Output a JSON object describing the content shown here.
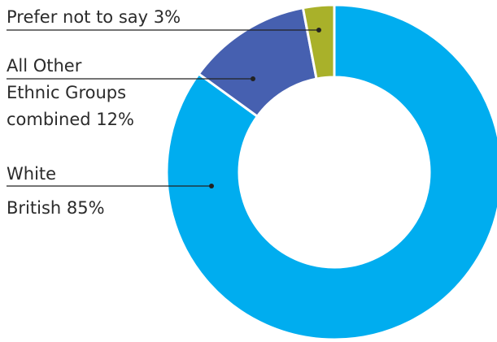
{
  "chart_data": {
    "type": "pie",
    "donut": true,
    "categories": [
      "White British",
      "All Other Ethnic Groups combined",
      "Prefer not to say"
    ],
    "values": [
      85,
      12,
      3
    ],
    "unit": "%",
    "colors": [
      "#00adef",
      "#4660b0",
      "#a9b12a"
    ],
    "legend": "leader-line labels at left",
    "labels": [
      {
        "category": "White British",
        "lines": [
          "White",
          "British 85%"
        ]
      },
      {
        "category": "All Other Ethnic Groups combined",
        "lines": [
          "All Other",
          "Ethnic Groups",
          "combined 12%"
        ]
      },
      {
        "category": "Prefer not to say",
        "lines": [
          "Prefer not to say 3%"
        ]
      }
    ]
  }
}
